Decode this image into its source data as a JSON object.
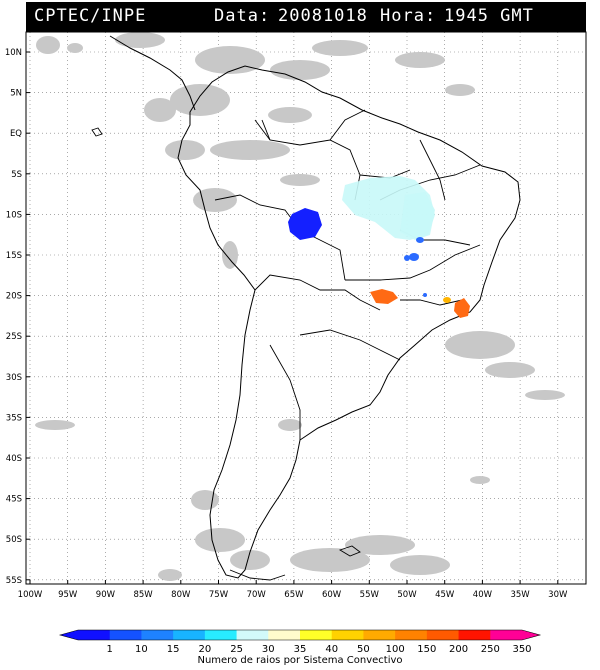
{
  "header": {
    "org": "CPTEC/INPE",
    "data_label": "Data:",
    "date": "20081018",
    "hora_label": "Hora:",
    "time": "1945 GMT"
  },
  "map": {
    "lat_ticks": [
      "10N",
      "5N",
      "EQ",
      "5S",
      "10S",
      "15S",
      "20S",
      "25S",
      "30S",
      "35S",
      "40S",
      "45S",
      "50S",
      "55S"
    ],
    "lon_ticks": [
      "100W",
      "95W",
      "90W",
      "85W",
      "80W",
      "75W",
      "70W",
      "65W",
      "60W",
      "55W",
      "50W",
      "45W",
      "40W",
      "35W",
      "30W"
    ],
    "colors": {
      "cloud": "#c8c8c8",
      "light_cyan": "#c8f8f8",
      "blue": "#1420ff",
      "mid_blue": "#2b6bff",
      "orange": "#ff6a14",
      "yellow_orange": "#ffb400"
    }
  },
  "legend": {
    "labels": [
      "1",
      "10",
      "15",
      "20",
      "25",
      "30",
      "35",
      "40",
      "50",
      "100",
      "150",
      "200",
      "250",
      "350"
    ],
    "colors": [
      "#1010ff",
      "#1452ff",
      "#1e82ff",
      "#18b4ff",
      "#28ecff",
      "#d2fafa",
      "#fffccc",
      "#ffff28",
      "#ffd200",
      "#ffaa00",
      "#ff8200",
      "#ff5a00",
      "#ff1400",
      "#ff0096"
    ],
    "caption": "Numero de raios por Sistema Convectivo"
  }
}
